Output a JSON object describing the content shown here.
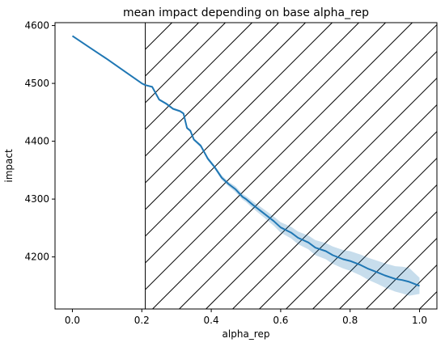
{
  "chart_data": {
    "type": "line",
    "title": "mean impact depending on base alpha_rep",
    "xlabel": "alpha_rep",
    "ylabel": "impact",
    "xlim": [
      -0.05,
      1.05
    ],
    "ylim": [
      4110,
      4605
    ],
    "xticks": [
      0.0,
      0.2,
      0.4,
      0.6,
      0.8,
      1.0
    ],
    "xtick_labels": [
      "0.0",
      "0.2",
      "0.4",
      "0.6",
      "0.8",
      "1.0"
    ],
    "yticks": [
      4200,
      4300,
      4400,
      4500,
      4600
    ],
    "ytick_labels": [
      "4200",
      "4300",
      "4400",
      "4500",
      "4600"
    ],
    "grid": false,
    "hatched_region": {
      "x_start": 0.21,
      "x_end": 1.05,
      "pattern": "diagonal hatch"
    },
    "line_color": "#1f77b4",
    "band_color": "#1f77b4",
    "series": [
      {
        "x": [
          0.0,
          0.05,
          0.1,
          0.15,
          0.2,
          0.21,
          0.23,
          0.25,
          0.27,
          0.29,
          0.31,
          0.32,
          0.33,
          0.34,
          0.35,
          0.37,
          0.39,
          0.41,
          0.43,
          0.45,
          0.47,
          0.49,
          0.5,
          0.52,
          0.55,
          0.58,
          0.6,
          0.63,
          0.65,
          0.68,
          0.7,
          0.73,
          0.75,
          0.78,
          0.8,
          0.83,
          0.85,
          0.88,
          0.9,
          0.93,
          0.95,
          0.97,
          1.0
        ],
        "y": [
          4582,
          4562,
          4542,
          4521,
          4500,
          4497,
          4494,
          4472,
          4465,
          4456,
          4452,
          4448,
          4423,
          4418,
          4403,
          4392,
          4370,
          4355,
          4337,
          4326,
          4317,
          4304,
          4300,
          4290,
          4276,
          4262,
          4251,
          4242,
          4233,
          4225,
          4216,
          4210,
          4203,
          4196,
          4193,
          4186,
          4180,
          4173,
          4168,
          4162,
          4160,
          4157,
          4150
        ],
        "ci_low": [
          4582,
          4562,
          4542,
          4521,
          4500,
          4496,
          4493,
          4470,
          4463,
          4454,
          4450,
          4446,
          4421,
          4416,
          4401,
          4389,
          4367,
          4352,
          4333,
          4322,
          4312,
          4299,
          4295,
          4284,
          4269,
          4254,
          4242,
          4232,
          4222,
          4213,
          4203,
          4196,
          4188,
          4180,
          4176,
          4168,
          4161,
          4153,
          4147,
          4140,
          4137,
          4133,
          4136
        ],
        "ci_high": [
          4582,
          4562,
          4542,
          4521,
          4500,
          4498,
          4495,
          4474,
          4467,
          4458,
          4454,
          4450,
          4425,
          4420,
          4405,
          4395,
          4373,
          4358,
          4341,
          4330,
          4322,
          4309,
          4305,
          4296,
          4283,
          4270,
          4260,
          4252,
          4244,
          4237,
          4229,
          4224,
          4218,
          4212,
          4210,
          4204,
          4199,
          4193,
          4189,
          4184,
          4183,
          4181,
          4164
        ]
      }
    ]
  }
}
